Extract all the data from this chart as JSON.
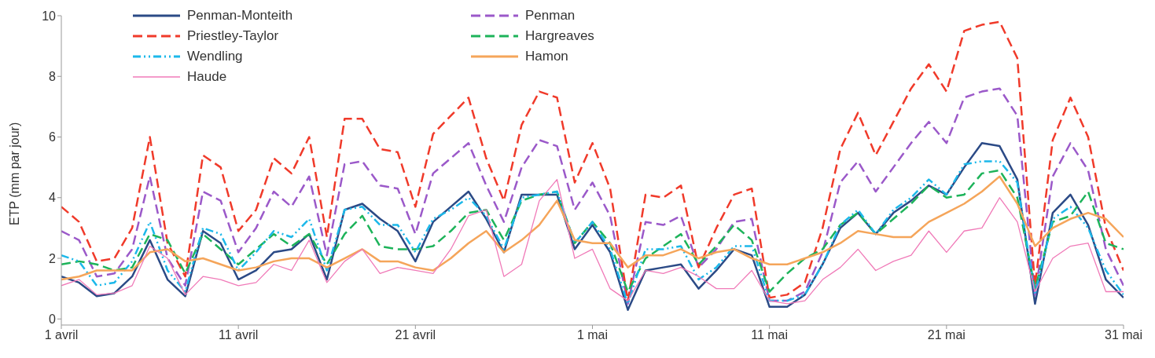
{
  "chart_data": {
    "type": "line",
    "ylabel": "ETP (mm par jour)",
    "x": [
      "--04-01",
      "--04-02",
      "--04-03",
      "--04-04",
      "--04-05",
      "--04-06",
      "--04-07",
      "--04-08",
      "--04-09",
      "--04-10",
      "--04-11",
      "--04-12",
      "--04-13",
      "--04-14",
      "--04-15",
      "--04-16",
      "--04-17",
      "--04-18",
      "--04-19",
      "--04-20",
      "--04-21",
      "--04-22",
      "--04-23",
      "--04-24",
      "--04-25",
      "--04-26",
      "--04-27",
      "--04-28",
      "--04-29",
      "--04-30",
      "--05-01",
      "--05-02",
      "--05-03",
      "--05-04",
      "--05-05",
      "--05-06",
      "--05-07",
      "--05-08",
      "--05-09",
      "--05-10",
      "--05-11",
      "--05-12",
      "--05-13",
      "--05-14",
      "--05-15",
      "--05-16",
      "--05-17",
      "--05-18",
      "--05-19",
      "--05-20",
      "--05-21",
      "--05-22",
      "--05-23",
      "--05-24",
      "--05-25",
      "--05-26",
      "--05-27",
      "--05-28",
      "--05-29",
      "--05-30",
      "--05-31"
    ],
    "xlim": [
      "--04-01",
      "--05-31"
    ],
    "xticks": [
      {
        "value": "--04-01",
        "label": "1 avril"
      },
      {
        "value": "--04-11",
        "label": "11 avril"
      },
      {
        "value": "--04-21",
        "label": "21 avril"
      },
      {
        "value": "--05-01",
        "label": "1 mai"
      },
      {
        "value": "--05-11",
        "label": "11 mai"
      },
      {
        "value": "--05-21",
        "label": "21 mai"
      },
      {
        "value": "--05-31",
        "label": "31 mai"
      }
    ],
    "ylim": [
      -0.2,
      10
    ],
    "yticks": [
      0,
      2,
      4,
      6,
      8,
      10
    ],
    "grid": false,
    "legend": "top left",
    "marker": "none",
    "series": [
      {
        "name": "Penman-Monteith",
        "color": "#2b4a86",
        "line_style": "solid",
        "values": [
          1.4,
          1.2,
          0.75,
          0.85,
          1.4,
          2.6,
          1.3,
          0.75,
          2.9,
          2.5,
          1.3,
          1.6,
          2.2,
          2.3,
          2.8,
          1.3,
          3.6,
          3.8,
          3.3,
          2.9,
          1.9,
          3.2,
          3.7,
          4.2,
          3.3,
          2.2,
          4.1,
          4.1,
          4.1,
          2.3,
          3.1,
          2.2,
          0.3,
          1.6,
          1.7,
          1.8,
          1.0,
          1.6,
          2.3,
          2.1,
          0.4,
          0.4,
          0.8,
          1.8,
          3.0,
          3.5,
          2.8,
          3.5,
          3.9,
          4.4,
          4.1,
          5.0,
          5.8,
          5.7,
          4.6,
          0.5,
          3.5,
          4.1,
          3.1,
          1.3,
          0.7
        ]
      },
      {
        "name": "Penman",
        "color": "#9b59c9",
        "line_style": "dashed",
        "values": [
          2.9,
          2.6,
          1.4,
          1.5,
          2.3,
          4.7,
          2.0,
          1.1,
          4.2,
          3.9,
          2.2,
          3.0,
          4.2,
          3.7,
          4.7,
          2.1,
          5.1,
          5.2,
          4.4,
          4.3,
          2.8,
          4.8,
          5.3,
          5.8,
          4.4,
          3.2,
          5.0,
          5.9,
          5.7,
          3.6,
          4.5,
          3.4,
          0.5,
          3.2,
          3.1,
          3.4,
          1.7,
          2.3,
          3.2,
          3.3,
          0.6,
          0.6,
          0.9,
          2.2,
          4.5,
          5.2,
          4.2,
          5.0,
          5.8,
          6.5,
          5.8,
          7.3,
          7.5,
          7.6,
          6.7,
          0.8,
          4.7,
          5.8,
          4.9,
          2.3,
          1.1
        ]
      },
      {
        "name": "Priestley-Taylor",
        "color": "#f03a2a",
        "line_style": "dashed",
        "values": [
          3.7,
          3.2,
          1.9,
          2.0,
          3.0,
          6.0,
          2.5,
          1.4,
          5.4,
          5.0,
          2.9,
          3.6,
          5.3,
          4.8,
          6.0,
          2.7,
          6.6,
          6.6,
          5.6,
          5.5,
          3.7,
          6.1,
          6.7,
          7.3,
          5.3,
          3.9,
          6.4,
          7.5,
          7.3,
          4.5,
          5.8,
          4.3,
          0.6,
          4.1,
          4.0,
          4.4,
          1.7,
          3.0,
          4.1,
          4.3,
          0.7,
          0.8,
          1.2,
          3.0,
          5.6,
          6.8,
          5.4,
          6.5,
          7.6,
          8.4,
          7.5,
          9.5,
          9.7,
          9.8,
          8.6,
          1.1,
          5.9,
          7.3,
          6.0,
          3.0,
          1.6
        ]
      },
      {
        "name": "Hargreaves",
        "color": "#1db35a",
        "line_style": "dashed",
        "values": [
          1.8,
          1.9,
          1.8,
          1.6,
          1.7,
          2.8,
          2.6,
          1.5,
          2.8,
          2.3,
          1.8,
          2.3,
          2.8,
          2.4,
          2.8,
          1.8,
          2.8,
          3.4,
          2.4,
          2.3,
          2.3,
          2.4,
          2.9,
          3.5,
          3.6,
          2.6,
          3.9,
          4.1,
          4.2,
          2.5,
          3.2,
          2.5,
          0.9,
          2.0,
          2.4,
          2.8,
          1.8,
          2.4,
          3.1,
          2.6,
          0.9,
          1.5,
          2.0,
          2.3,
          3.1,
          3.5,
          2.8,
          3.3,
          3.8,
          4.4,
          4.0,
          4.1,
          4.8,
          4.9,
          4.0,
          1.0,
          3.2,
          3.4,
          4.2,
          2.5,
          2.3
        ]
      },
      {
        "name": "Wendling",
        "color": "#1cb8ea",
        "line_style": "dotted",
        "values": [
          2.1,
          1.9,
          1.1,
          1.2,
          1.9,
          3.2,
          1.6,
          0.9,
          3.0,
          2.8,
          1.6,
          2.2,
          2.9,
          2.7,
          3.3,
          1.6,
          3.6,
          3.7,
          3.1,
          3.1,
          2.2,
          3.3,
          3.6,
          4.0,
          3.4,
          2.3,
          4.0,
          4.1,
          4.2,
          2.5,
          3.2,
          2.3,
          0.5,
          2.3,
          2.3,
          2.4,
          1.3,
          1.7,
          2.4,
          2.4,
          0.6,
          0.6,
          0.8,
          1.8,
          3.1,
          3.6,
          2.8,
          3.6,
          4.0,
          4.6,
          4.1,
          5.1,
          5.2,
          5.2,
          4.5,
          0.8,
          3.3,
          3.7,
          3.0,
          1.6,
          0.8
        ]
      },
      {
        "name": "Hamon",
        "color": "#f5a55a",
        "line_style": "solid",
        "values": [
          1.3,
          1.4,
          1.6,
          1.6,
          1.6,
          2.2,
          2.3,
          1.9,
          2.0,
          1.8,
          1.6,
          1.7,
          1.9,
          2.0,
          2.0,
          1.7,
          2.0,
          2.3,
          1.9,
          1.9,
          1.7,
          1.6,
          2.0,
          2.5,
          2.9,
          2.2,
          2.6,
          3.1,
          3.9,
          2.6,
          2.5,
          2.5,
          1.7,
          2.1,
          2.1,
          2.3,
          2.0,
          2.2,
          2.3,
          2.0,
          1.8,
          1.8,
          2.0,
          2.2,
          2.5,
          2.9,
          2.8,
          2.7,
          2.7,
          3.2,
          3.5,
          3.8,
          4.2,
          4.7,
          3.8,
          2.4,
          3.0,
          3.3,
          3.5,
          3.3,
          2.7
        ]
      },
      {
        "name": "Haude",
        "color": "#f07ab8",
        "line_style": "solid",
        "values": [
          1.1,
          1.3,
          0.8,
          0.85,
          1.1,
          2.4,
          2.0,
          0.8,
          1.4,
          1.3,
          1.1,
          1.2,
          1.8,
          1.6,
          2.6,
          1.2,
          1.9,
          2.3,
          1.5,
          1.7,
          1.6,
          1.5,
          2.3,
          3.4,
          3.6,
          1.4,
          1.8,
          3.9,
          4.6,
          2.0,
          2.3,
          1.0,
          0.6,
          1.6,
          1.5,
          1.7,
          1.4,
          1.0,
          1.0,
          1.6,
          0.6,
          0.5,
          0.6,
          1.3,
          1.7,
          2.3,
          1.6,
          1.9,
          2.1,
          2.9,
          2.2,
          2.9,
          3.0,
          4.0,
          3.2,
          0.9,
          2.0,
          2.4,
          2.5,
          0.9,
          0.9
        ]
      }
    ]
  }
}
